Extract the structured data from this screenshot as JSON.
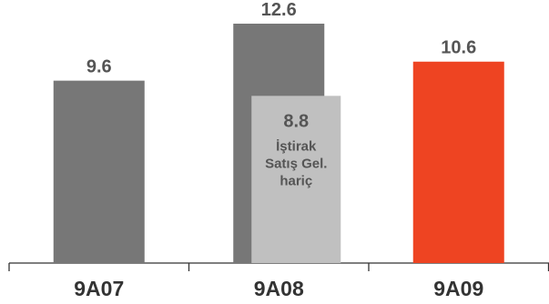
{
  "chart_data": {
    "type": "bar",
    "categories": [
      "9A07",
      "9A08",
      "9A09"
    ],
    "values": [
      9.6,
      12.6,
      10.6
    ],
    "value_labels": [
      "9.6",
      "12.6",
      "10.6"
    ],
    "bar_colors": [
      "#777777",
      "#777777",
      "#EE4422"
    ],
    "overlay": {
      "category": "9A08",
      "value": 8.8,
      "value_label": "8.8",
      "note_lines": [
        "İştirak",
        "Satış Gel.",
        "hariç"
      ],
      "color": "#C0C0C0"
    },
    "title": "",
    "xlabel": "",
    "ylabel": "",
    "ylim": [
      0,
      12.6
    ]
  }
}
